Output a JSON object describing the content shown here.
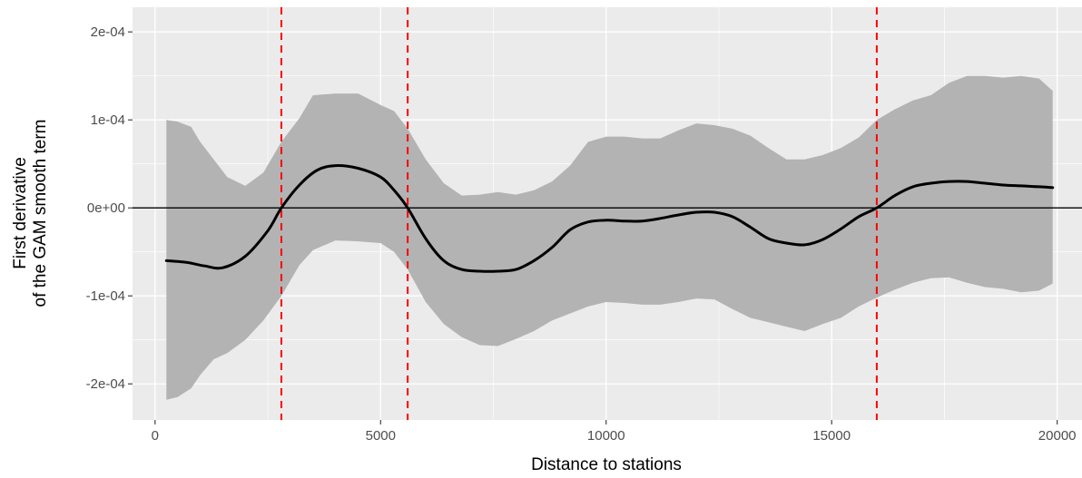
{
  "chart_data": {
    "type": "line",
    "title": "",
    "xlabel": "Distance to stations",
    "ylabel_lines": [
      "First derivative",
      "of the GAM smooth term"
    ],
    "xlim": [
      -500,
      20550
    ],
    "ylim": [
      -0.000241,
      0.000228
    ],
    "x_ticks": [
      0,
      5000,
      10000,
      15000,
      20000
    ],
    "x_tick_labels": [
      "0",
      "5000",
      "10000",
      "15000",
      "20000"
    ],
    "y_ticks": [
      0.0002,
      0.0001,
      0,
      -0.0001,
      -0.0002
    ],
    "y_tick_labels": [
      "2e-04",
      "1e-04",
      "0e+00",
      "-1e-04",
      "-2e-04"
    ],
    "grid": true,
    "legend": "none",
    "hline": 0,
    "vlines": [
      2800,
      5600,
      16000
    ],
    "series": [
      {
        "x": [
          250,
          700,
          1100,
          1500,
          2000,
          2500,
          2800,
          3200,
          3600,
          4000,
          4500,
          5000,
          5300,
          5600,
          6000,
          6400,
          6800,
          7200,
          7600,
          8000,
          8400,
          8800,
          9200,
          9600,
          10000,
          10400,
          10800,
          11200,
          11600,
          12000,
          12400,
          12800,
          13200,
          13600,
          14000,
          14400,
          14800,
          15200,
          15600,
          16000,
          16400,
          16800,
          17200,
          17600,
          18000,
          18400,
          18800,
          19200,
          19600,
          19900
        ],
        "y": [
          -6e-05,
          -6.2e-05,
          -6.6e-05,
          -6.8e-05,
          -5.5e-05,
          -2.6e-05,
          0.0,
          2.6e-05,
          4.3e-05,
          4.8e-05,
          4.5e-05,
          3.5e-05,
          2e-05,
          0.0,
          -3.5e-05,
          -6e-05,
          -7e-05,
          -7.2e-05,
          -7.2e-05,
          -7e-05,
          -6e-05,
          -4.5e-05,
          -2.5e-05,
          -1.6e-05,
          -1.4e-05,
          -1.5e-05,
          -1.5e-05,
          -1.2e-05,
          -8e-06,
          -5e-06,
          -5e-06,
          -1e-05,
          -2.2e-05,
          -3.5e-05,
          -4e-05,
          -4.2e-05,
          -3.6e-05,
          -2.4e-05,
          -1e-05,
          0.0,
          1.4e-05,
          2.4e-05,
          2.8e-05,
          3e-05,
          3e-05,
          2.8e-05,
          2.6e-05,
          2.5e-05,
          2.4e-05,
          2.3e-05
        ]
      }
    ],
    "band": {
      "x": [
        250,
        500,
        800,
        1000,
        1300,
        1600,
        2000,
        2400,
        2800,
        3200,
        3500,
        4000,
        4500,
        5000,
        5300,
        5600,
        6000,
        6400,
        6800,
        7200,
        7600,
        8000,
        8400,
        8800,
        9200,
        9600,
        10000,
        10400,
        10800,
        11200,
        11600,
        12000,
        12400,
        12800,
        13200,
        13600,
        14000,
        14400,
        14800,
        15200,
        15600,
        16000,
        16400,
        16800,
        17200,
        17600,
        18000,
        18400,
        18800,
        19200,
        19600,
        19900
      ],
      "lower": [
        -0.000218,
        -0.000215,
        -0.000205,
        -0.00019,
        -0.000172,
        -0.000165,
        -0.00015,
        -0.000128,
        -0.0001,
        -6.5e-05,
        -4.8e-05,
        -3.7e-05,
        -3.8e-05,
        -4e-05,
        -5e-05,
        -7e-05,
        -0.000107,
        -0.000132,
        -0.000147,
        -0.000156,
        -0.000157,
        -0.000149,
        -0.00014,
        -0.000128,
        -0.00012,
        -0.000112,
        -0.000107,
        -0.000108,
        -0.00011,
        -0.00011,
        -0.000107,
        -0.000103,
        -0.000104,
        -0.000115,
        -0.000125,
        -0.00013,
        -0.000135,
        -0.00014,
        -0.000132,
        -0.000125,
        -0.000112,
        -0.000102,
        -9.3e-05,
        -8.5e-05,
        -8e-05,
        -7.9e-05,
        -8.5e-05,
        -9e-05,
        -9.2e-05,
        -9.6e-05,
        -9.4e-05,
        -8.6e-05
      ],
      "upper": [
        0.0001,
        9.8e-05,
        9.2e-05,
        7.5e-05,
        5.5e-05,
        3.5e-05,
        2.5e-05,
        4e-05,
        7.5e-05,
        0.000102,
        0.000128,
        0.00013,
        0.00013,
        0.000117,
        0.00011,
        9e-05,
        5.5e-05,
        2.8e-05,
        1.4e-05,
        1.5e-05,
        1.8e-05,
        1.5e-05,
        2e-05,
        3e-05,
        4.8e-05,
        7.5e-05,
        8.1e-05,
        8.1e-05,
        7.9e-05,
        7.9e-05,
        8.8e-05,
        9.6e-05,
        9.4e-05,
        9e-05,
        8.2e-05,
        6.8e-05,
        5.5e-05,
        5.5e-05,
        6e-05,
        6.8e-05,
        8e-05,
        0.0001,
        0.000112,
        0.000122,
        0.000128,
        0.000142,
        0.00015,
        0.00015,
        0.000148,
        0.00015,
        0.000147,
        0.000133
      ]
    },
    "colors": {
      "panel": "#ebebeb",
      "grid_major": "#ffffff",
      "band": "#b3b3b3",
      "line": "#000000",
      "vline": "#ff0000",
      "tick_text": "#4d4d4d",
      "tick_mark": "#333333"
    }
  }
}
